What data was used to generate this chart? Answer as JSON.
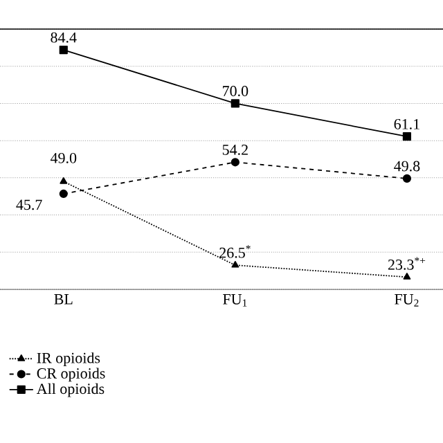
{
  "chart_data": {
    "type": "line",
    "categories": [
      "BL",
      "FU$_{1}$",
      "FU$_{2}$"
    ],
    "series": [
      {
        "name": "IR opioids",
        "color": "#000000",
        "line_style": "dotted",
        "marker": "triangle",
        "values": [
          49.0,
          26.5,
          23.3
        ],
        "value_labels": [
          "49.0",
          "26.5$^{*}$",
          "23.3$^{*+}$"
        ]
      },
      {
        "name": "CR opioids",
        "color": "#000000",
        "line_style": "dashed",
        "marker": "circle",
        "values": [
          45.7,
          54.2,
          49.8
        ],
        "value_labels": [
          "45.7",
          "54.2",
          "49.8"
        ]
      },
      {
        "name": "All opioids",
        "color": "#000000",
        "line_style": "solid",
        "marker": "square",
        "values": [
          84.4,
          70.0,
          61.1
        ],
        "value_labels": [
          "84.4",
          "70.0",
          "61.1"
        ]
      }
    ],
    "ylim": [
      20,
      90
    ],
    "grid": "y",
    "legend": "bottom",
    "tick_labels": "x"
  }
}
